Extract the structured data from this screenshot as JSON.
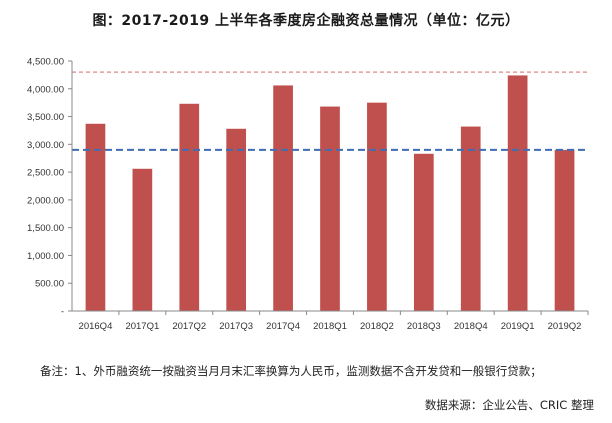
{
  "title": "图：2017-2019 上半年各季度房企融资总量情况（单位：亿元）",
  "note": "备注：1、外币融资统一按融资当月月末汇率换算为人民币，监测数据不含开发贷和一般银行贷款；",
  "source": "数据来源：企业公告、CRIC 整理",
  "colors": {
    "bar": "#c0504d",
    "red_line": "#e49b9b",
    "blue_line": "#3f6db3",
    "axis": "#888888"
  },
  "chart_data": {
    "type": "bar",
    "categories": [
      "2016Q4",
      "2017Q1",
      "2017Q2",
      "2017Q3",
      "2017Q4",
      "2018Q1",
      "2018Q2",
      "2018Q3",
      "2018Q4",
      "2019Q1",
      "2019Q2"
    ],
    "values": [
      3370,
      2560,
      3730,
      3280,
      4060,
      3680,
      3750,
      2830,
      3320,
      4240,
      2900
    ],
    "ylim": [
      0,
      4500
    ],
    "yticks": [
      "-",
      "500.00",
      "1,000.00",
      "1,500.00",
      "2,000.00",
      "2,500.00",
      "3,000.00",
      "3,500.00",
      "4,000.00",
      "4,500.00"
    ],
    "reference_lines": [
      {
        "style": "dashed",
        "color": "red",
        "value": 4300
      },
      {
        "style": "dashed",
        "color": "blue",
        "value": 2900
      }
    ],
    "grid": false,
    "legend": "none"
  }
}
